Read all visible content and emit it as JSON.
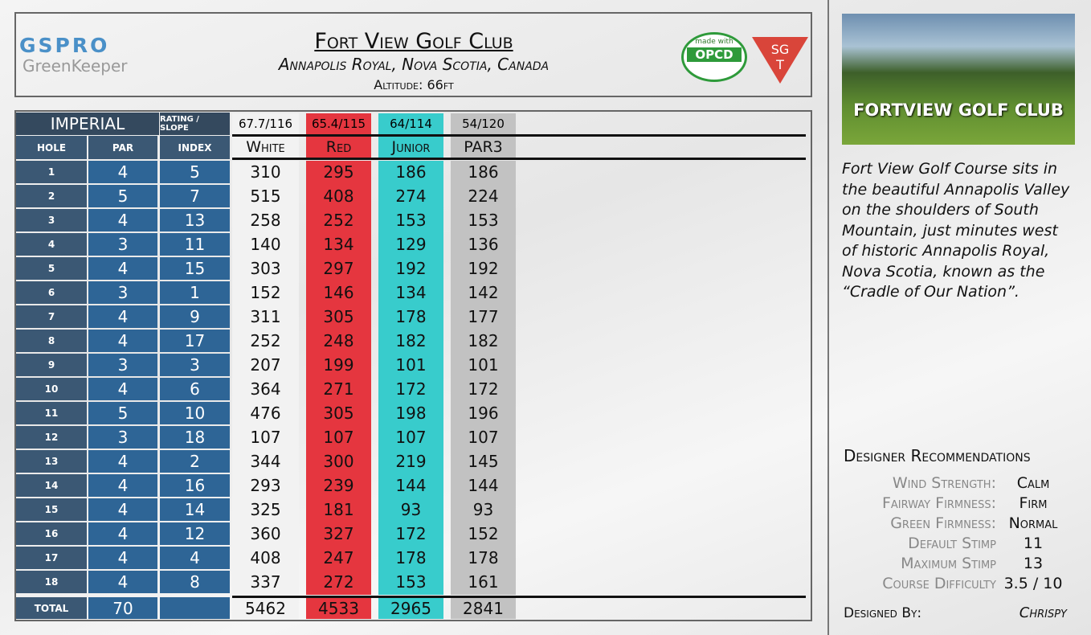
{
  "header": {
    "logo_top": "GSPRO",
    "logo_bottom": "GreenKeeper",
    "title": "Fort View Golf Club",
    "location": "Annapolis Royal, Nova Scotia, Canada",
    "altitude": "Altitude: 66ft",
    "badge_opcd_top": "made with",
    "badge_opcd": "OPCD",
    "badge_sgt_top": "SG",
    "badge_sgt_bottom": "T"
  },
  "table": {
    "system": "IMPERIAL",
    "rating_label": "RATING / SLOPE",
    "hole_label": "HOLE",
    "par_label": "PAR",
    "index_label": "INDEX",
    "total_label": "TOTAL",
    "par_total": 70,
    "holes": [
      {
        "hole": 1,
        "par": 4,
        "index": 5
      },
      {
        "hole": 2,
        "par": 5,
        "index": 7
      },
      {
        "hole": 3,
        "par": 4,
        "index": 13
      },
      {
        "hole": 4,
        "par": 3,
        "index": 11
      },
      {
        "hole": 5,
        "par": 4,
        "index": 15
      },
      {
        "hole": 6,
        "par": 3,
        "index": 1
      },
      {
        "hole": 7,
        "par": 4,
        "index": 9
      },
      {
        "hole": 8,
        "par": 4,
        "index": 17
      },
      {
        "hole": 9,
        "par": 3,
        "index": 3
      },
      {
        "hole": 10,
        "par": 4,
        "index": 6
      },
      {
        "hole": 11,
        "par": 5,
        "index": 10
      },
      {
        "hole": 12,
        "par": 3,
        "index": 18
      },
      {
        "hole": 13,
        "par": 4,
        "index": 2
      },
      {
        "hole": 14,
        "par": 4,
        "index": 16
      },
      {
        "hole": 15,
        "par": 4,
        "index": 14
      },
      {
        "hole": 16,
        "par": 4,
        "index": 12
      },
      {
        "hole": 17,
        "par": 4,
        "index": 4
      },
      {
        "hole": 18,
        "par": 4,
        "index": 8
      }
    ],
    "tees": [
      {
        "name": "White",
        "rating": "67.7/116",
        "yards": [
          310,
          515,
          258,
          140,
          303,
          152,
          311,
          252,
          207,
          364,
          476,
          107,
          344,
          293,
          325,
          360,
          408,
          337
        ],
        "total": 5462
      },
      {
        "name": "Red",
        "rating": "65.4/115",
        "yards": [
          295,
          408,
          252,
          134,
          297,
          146,
          305,
          248,
          199,
          271,
          305,
          107,
          300,
          239,
          181,
          327,
          247,
          272
        ],
        "total": 4533
      },
      {
        "name": "Junior",
        "rating": "64/114",
        "yards": [
          186,
          274,
          153,
          129,
          192,
          134,
          178,
          182,
          101,
          172,
          198,
          107,
          219,
          144,
          93,
          172,
          178,
          153
        ],
        "total": 2965
      },
      {
        "name": "PAR3",
        "rating": "54/120",
        "yards": [
          186,
          224,
          153,
          136,
          192,
          142,
          177,
          182,
          101,
          172,
          196,
          107,
          145,
          144,
          93,
          152,
          178,
          161
        ],
        "total": 2841
      }
    ]
  },
  "side": {
    "image_title": "FORTVIEW GOLF CLUB",
    "description": "Fort View Golf Course sits in the beautiful Annapolis Valley on the shoulders of South Mountain, just minutes west of historic Annapolis Royal, Nova Scotia, known as the “Cradle of Our Nation”.",
    "recommendations_title": "Designer Recommendations",
    "recommendations": [
      {
        "label": "Wind Strength:",
        "value": "Calm"
      },
      {
        "label": "Fairway Firmness:",
        "value": "Firm"
      },
      {
        "label": "Green Firmness:",
        "value": "Normal"
      },
      {
        "label": "Default Stimp",
        "value": "11"
      },
      {
        "label": "Maximum Stimp",
        "value": "13"
      },
      {
        "label": "Course Difficulty",
        "value": "3.5 / 10"
      }
    ],
    "designed_by_label": "Designed By:",
    "designer": "Chrispy"
  }
}
